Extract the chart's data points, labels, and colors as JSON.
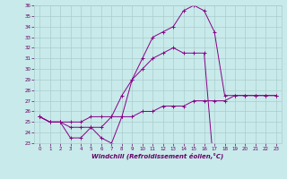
{
  "xlabel": "Windchill (Refroidissement éolien,°C)",
  "background_color": "#c8eaea",
  "line_color": "#880088",
  "grid_color": "#aacccc",
  "tick_color": "#660066",
  "x_hours": [
    0,
    1,
    2,
    3,
    4,
    5,
    6,
    7,
    8,
    9,
    10,
    11,
    12,
    13,
    14,
    15,
    16,
    17,
    18,
    19,
    20,
    21,
    22,
    23
  ],
  "curve1": [
    25.5,
    25.0,
    25.0,
    23.5,
    23.5,
    24.5,
    23.5,
    23.0,
    25.5,
    29.0,
    31.0,
    33.0,
    33.5,
    34.0,
    35.5,
    36.0,
    35.5,
    33.5,
    27.5,
    27.5,
    27.5,
    27.5,
    27.5,
    27.5
  ],
  "curve2": [
    25.5,
    25.0,
    25.0,
    24.5,
    24.5,
    24.5,
    24.5,
    25.5,
    27.5,
    29.0,
    30.0,
    31.0,
    31.5,
    32.0,
    31.5,
    31.5,
    31.5,
    20.0,
    null,
    null,
    null,
    null,
    null,
    null
  ],
  "curve3": [
    25.5,
    25.0,
    25.0,
    25.0,
    25.0,
    25.5,
    25.5,
    25.5,
    25.5,
    25.5,
    26.0,
    26.0,
    26.5,
    26.5,
    26.5,
    27.0,
    27.0,
    27.0,
    27.0,
    27.5,
    27.5,
    27.5,
    27.5,
    27.5
  ],
  "ylim": [
    23,
    36
  ],
  "xlim": [
    -0.5,
    23.5
  ],
  "yticks": [
    23,
    24,
    25,
    26,
    27,
    28,
    29,
    30,
    31,
    32,
    33,
    34,
    35,
    36
  ],
  "xticks": [
    0,
    1,
    2,
    3,
    4,
    5,
    6,
    7,
    8,
    9,
    10,
    11,
    12,
    13,
    14,
    15,
    16,
    17,
    18,
    19,
    20,
    21,
    22,
    23
  ]
}
